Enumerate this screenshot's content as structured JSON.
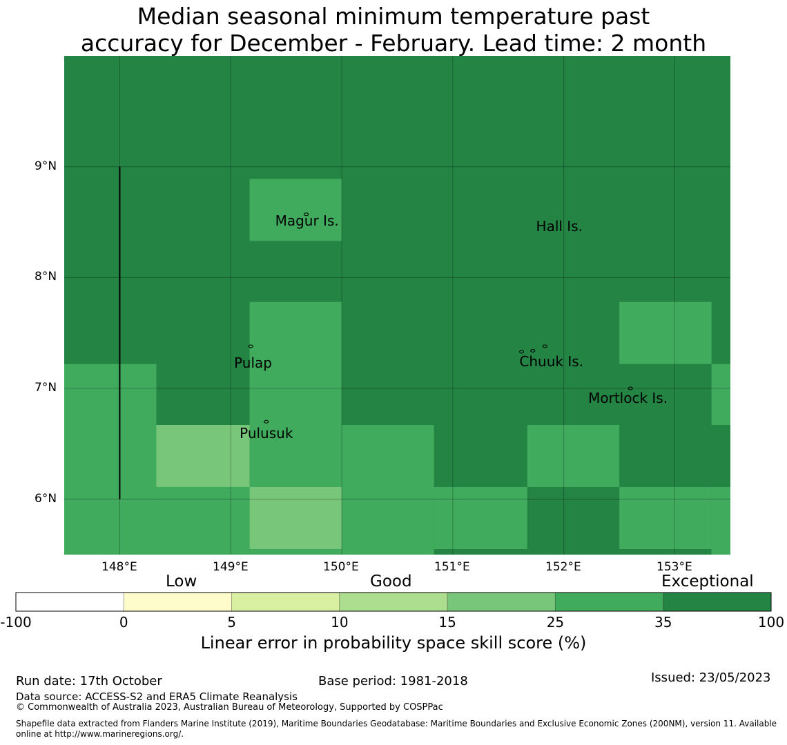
{
  "title": {
    "line1": "Median seasonal minimum temperature past",
    "line2": "accuracy for December - February. Lead time: 2 month"
  },
  "map": {
    "lon_range": [
      147.5,
      153.5
    ],
    "lat_range": [
      5.5,
      10.0
    ],
    "lon_ticks": [
      "148°E",
      "149°E",
      "150°E",
      "151°E",
      "152°E",
      "153°E"
    ],
    "lat_ticks": [
      "9°N",
      "8°N",
      "7°N",
      "6°N"
    ],
    "grid_colors": [
      "#ffffff",
      "#fffccc",
      "#d9f0a3",
      "#addd8e",
      "#78c679",
      "#41ab5d",
      "#238443"
    ],
    "cells": [
      {
        "lon0": 147.5,
        "lon1": 148.33,
        "lat0": 5.5,
        "lat1": 7.22,
        "cls": 5
      },
      {
        "lon0": 148.33,
        "lon1": 149.17,
        "lat0": 6.11,
        "lat1": 6.67,
        "cls": 4
      },
      {
        "lon0": 148.33,
        "lon1": 149.17,
        "lat0": 5.5,
        "lat1": 6.11,
        "cls": 5
      },
      {
        "lon0": 149.17,
        "lon1": 150.0,
        "lat0": 8.33,
        "lat1": 8.89,
        "cls": 5
      },
      {
        "lon0": 149.17,
        "lon1": 150.0,
        "lat0": 6.11,
        "lat1": 7.78,
        "cls": 5
      },
      {
        "lon0": 149.17,
        "lon1": 150.0,
        "lat0": 5.55,
        "lat1": 6.11,
        "cls": 4
      },
      {
        "lon0": 149.17,
        "lon1": 150.0,
        "lat0": 5.5,
        "lat1": 5.55,
        "cls": 5
      },
      {
        "lon0": 150.0,
        "lon1": 150.83,
        "lat0": 5.5,
        "lat1": 6.67,
        "cls": 5
      },
      {
        "lon0": 150.83,
        "lon1": 151.67,
        "lat0": 5.55,
        "lat1": 6.11,
        "cls": 5
      },
      {
        "lon0": 151.67,
        "lon1": 152.5,
        "lat0": 6.11,
        "lat1": 6.67,
        "cls": 5
      },
      {
        "lon0": 152.5,
        "lon1": 153.33,
        "lat0": 5.55,
        "lat1": 6.11,
        "cls": 5
      },
      {
        "lon0": 153.33,
        "lon1": 153.5,
        "lat0": 5.5,
        "lat1": 6.11,
        "cls": 5
      },
      {
        "lon0": 152.5,
        "lon1": 153.33,
        "lat0": 7.22,
        "lat1": 7.78,
        "cls": 5
      },
      {
        "lon0": 153.33,
        "lon1": 153.5,
        "lat0": 6.67,
        "lat1": 7.22,
        "cls": 5
      }
    ],
    "meridian_segment": {
      "lon": 148.0,
      "lat_from": 6.0,
      "lat_to": 9.0
    },
    "places": [
      {
        "name": "Magur Is.",
        "lon": 149.4,
        "lat": 8.5
      },
      {
        "name": "Hall Is.",
        "lon": 151.75,
        "lat": 8.45
      },
      {
        "name": "Pulap",
        "lon": 149.03,
        "lat": 7.22
      },
      {
        "name": "Chuuk Is.",
        "lon": 151.6,
        "lat": 7.23
      },
      {
        "name": "Mortlock Is.",
        "lon": 152.22,
        "lat": 6.9
      },
      {
        "name": "Pulusuk",
        "lon": 149.08,
        "lat": 6.58
      }
    ],
    "islands": [
      {
        "lon": 149.68,
        "lat": 8.57
      },
      {
        "lon": 149.18,
        "lat": 7.38
      },
      {
        "lon": 151.83,
        "lat": 7.38
      },
      {
        "lon": 151.62,
        "lat": 7.33
      },
      {
        "lon": 151.72,
        "lat": 7.34
      },
      {
        "lon": 152.6,
        "lat": 7.0
      },
      {
        "lon": 149.32,
        "lat": 6.7
      }
    ]
  },
  "colorbar": {
    "categories": [
      "Low",
      "Good",
      "Exceptional"
    ],
    "ticks": [
      "-100",
      "0",
      "5",
      "10",
      "15",
      "25",
      "35",
      "100"
    ],
    "colors": [
      "#ffffff",
      "#fffccc",
      "#d9f0a3",
      "#addd8e",
      "#78c679",
      "#41ab5d",
      "#238443"
    ],
    "label": "Linear error in probability space skill score (%)"
  },
  "footer": {
    "run_date": "Run date: 17th October",
    "base_period": "Base period: 1981-2018",
    "issued": "Issued: 23/05/2023",
    "data_source": "Data source: ACCESS-S2 and ERA5 Climate Reanalysis",
    "copyright": "© Commonwealth of Australia 2023, Australian Bureau of Meteorology, Supported by COSPPac",
    "shapefile_line1": "Shapefile data extracted from Flanders Marine Institute (2019), Maritime Boundaries Geodatabase: Maritime Boundaries and Exclusive Economic Zones (200NM), version 11. Available",
    "shapefile_line2": "online at http://www.marineregions.org/."
  }
}
